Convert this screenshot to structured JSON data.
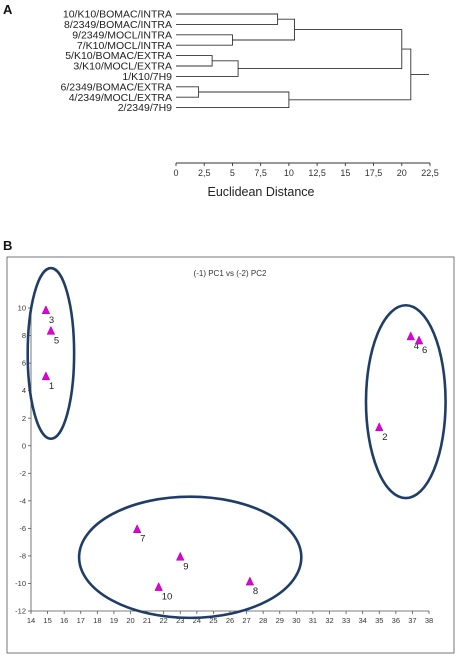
{
  "chart_data": [
    {
      "type": "dendrogram",
      "panel": "A",
      "xlabel": "Euclidean Distance",
      "xlim": [
        0,
        22.5
      ],
      "xticks": [
        "0",
        "2,5",
        "5",
        "7,5",
        "10",
        "12,5",
        "15",
        "17,5",
        "20",
        "22,5"
      ],
      "xtick_values": [
        0,
        2.5,
        5,
        7.5,
        10,
        12.5,
        15,
        17.5,
        20,
        22.5
      ],
      "leaves": [
        "10/K10/BOMAC/INTRA",
        "8/2349/BOMAC/INTRA",
        "9/2349/MOCL/INTRA",
        "7/K10/MOCL/INTRA",
        "5/K10/BOMAC/EXTRA",
        "3/K10/MOCL/EXTRA",
        "1/K10/7H9",
        "6/2349/BOMAC/EXTRA",
        "4/2349/MOCL/EXTRA",
        "2/2349/7H9"
      ],
      "merges": [
        {
          "left": "L0",
          "right": "L1",
          "height": 9.0,
          "id": "N1"
        },
        {
          "left": "L2",
          "right": "L3",
          "height": 5.0,
          "id": "N2"
        },
        {
          "left": "L4",
          "right": "L5",
          "height": 3.2,
          "id": "N3"
        },
        {
          "left": "L7",
          "right": "L8",
          "height": 2.0,
          "id": "N4"
        },
        {
          "left": "N3",
          "right": "L6",
          "height": 5.5,
          "id": "N5"
        },
        {
          "left": "N1",
          "right": "N2",
          "height": 10.5,
          "id": "N6"
        },
        {
          "left": "N4",
          "right": "L9",
          "height": 10.0,
          "id": "N7"
        },
        {
          "left": "N6",
          "right": "N5",
          "height": 20.0,
          "id": "N8"
        },
        {
          "left": "N8",
          "right": "N7",
          "height": 20.8,
          "id": "N9"
        }
      ]
    },
    {
      "type": "scatter",
      "panel": "B",
      "title": "(-1) PC1 vs (-2) PC2",
      "xlim": [
        14,
        38
      ],
      "ylim": [
        -12,
        10
      ],
      "xticks": [
        14,
        15,
        16,
        17,
        18,
        19,
        20,
        21,
        22,
        23,
        24,
        25,
        26,
        27,
        28,
        29,
        30,
        31,
        32,
        33,
        34,
        35,
        36,
        37,
        38
      ],
      "yticks": [
        10,
        8,
        6,
        4,
        2,
        0,
        -2,
        -4,
        -6,
        -8,
        -10,
        -12
      ],
      "points": [
        {
          "label": "1",
          "x": 14.9,
          "y": 5.0
        },
        {
          "label": "2",
          "x": 35.0,
          "y": 1.3
        },
        {
          "label": "3",
          "x": 14.9,
          "y": 9.8
        },
        {
          "label": "4",
          "x": 36.9,
          "y": 7.9
        },
        {
          "label": "5",
          "x": 15.2,
          "y": 8.3
        },
        {
          "label": "6",
          "x": 37.4,
          "y": 7.6
        },
        {
          "label": "7",
          "x": 20.4,
          "y": -6.1
        },
        {
          "label": "8",
          "x": 27.2,
          "y": -9.9
        },
        {
          "label": "9",
          "x": 23.0,
          "y": -8.1
        },
        {
          "label": "10",
          "x": 21.7,
          "y": -10.3
        }
      ],
      "groups": [
        {
          "cx": 15.2,
          "cy": 6.7,
          "rx": 1.4,
          "ry": 6.2
        },
        {
          "cx": 36.6,
          "cy": 3.2,
          "rx": 2.4,
          "ry": 7.0
        },
        {
          "cx": 23.6,
          "cy": -8.1,
          "rx": 6.7,
          "ry": 4.4
        }
      ],
      "marker_color": "#e000d8",
      "ellipse_color": "#1f3d66"
    }
  ],
  "panels": {
    "a_letter": "A",
    "b_letter": "B"
  }
}
